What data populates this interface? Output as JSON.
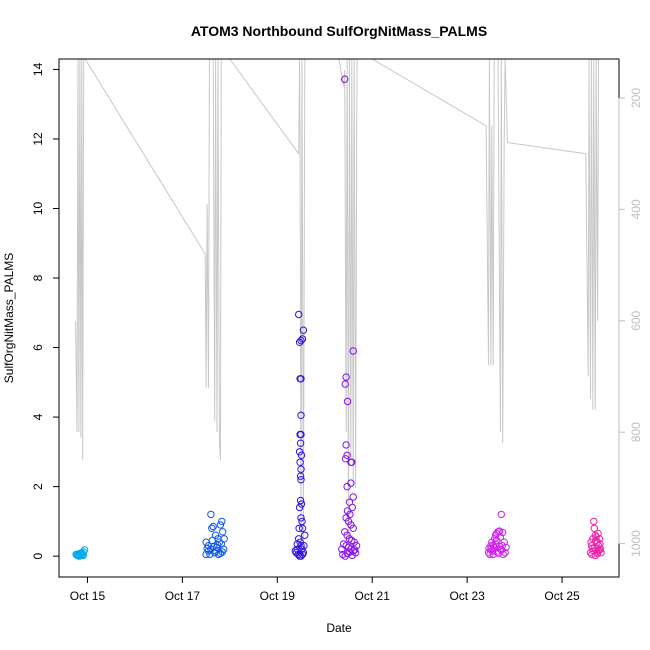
{
  "chart_data": {
    "type": "scatter",
    "title": "ATOM3 Northbound SulfOrgNitMass_PALMS",
    "xlabel": "Date",
    "ylabel": "SulfOrgNitMass_PALMS",
    "x_ticks": [
      "Oct 15",
      "Oct 17",
      "Oct 19",
      "Oct 21",
      "Oct 23",
      "Oct 25"
    ],
    "x_range_days": [
      14.4,
      26.2
    ],
    "y_ticks": [
      0,
      2,
      4,
      6,
      8,
      10,
      12,
      14
    ],
    "ylim": [
      -0.6,
      14.3
    ],
    "right_axis": {
      "ticks": [
        200,
        400,
        600,
        800,
        1000
      ],
      "range": [
        1060,
        130
      ],
      "color": "#bfbfbf"
    },
    "grid": false,
    "series": [
      {
        "color": "#00aaee",
        "points": [
          [
            14.78,
            0.03
          ],
          [
            14.8,
            0.06
          ],
          [
            14.82,
            0.02
          ],
          [
            14.84,
            0.08
          ],
          [
            14.86,
            0.05
          ],
          [
            14.88,
            0.1
          ],
          [
            14.9,
            0.04
          ],
          [
            14.92,
            0.12
          ],
          [
            14.8,
            0.01
          ],
          [
            14.86,
            0.03
          ],
          [
            14.94,
            0.18
          ],
          [
            14.76,
            0.05
          ],
          [
            14.83,
            0.0
          ],
          [
            14.88,
            0.07
          ],
          [
            14.91,
            0.02
          ]
        ]
      },
      {
        "color": "#1155ee",
        "points": [
          [
            17.5,
            0.05
          ],
          [
            17.55,
            0.15
          ],
          [
            17.6,
            1.2
          ],
          [
            17.62,
            0.8
          ],
          [
            17.65,
            0.85
          ],
          [
            17.7,
            0.6
          ],
          [
            17.75,
            0.5
          ],
          [
            17.8,
            0.9
          ],
          [
            17.83,
            1.0
          ],
          [
            17.85,
            0.7
          ],
          [
            17.55,
            0.3
          ],
          [
            17.6,
            0.2
          ],
          [
            17.68,
            0.1
          ],
          [
            17.72,
            0.25
          ],
          [
            17.78,
            0.4
          ],
          [
            17.82,
            0.35
          ],
          [
            17.87,
            0.2
          ],
          [
            17.5,
            0.4
          ],
          [
            17.58,
            0.05
          ],
          [
            17.63,
            0.45
          ],
          [
            17.7,
            0.15
          ],
          [
            17.76,
            0.05
          ],
          [
            17.84,
            0.12
          ],
          [
            17.88,
            0.5
          ],
          [
            17.52,
            0.22
          ],
          [
            17.66,
            0.28
          ],
          [
            17.74,
            0.33
          ],
          [
            17.8,
            0.08
          ]
        ]
      },
      {
        "color": "#3311dd",
        "points": [
          [
            19.45,
            6.95
          ],
          [
            19.47,
            6.15
          ],
          [
            19.5,
            6.2
          ],
          [
            19.53,
            6.25
          ],
          [
            19.55,
            6.5
          ],
          [
            19.48,
            5.1
          ],
          [
            19.5,
            5.1
          ],
          [
            19.5,
            4.05
          ],
          [
            19.48,
            3.5
          ],
          [
            19.5,
            3.5
          ],
          [
            19.49,
            3.25
          ],
          [
            19.47,
            3.0
          ],
          [
            19.51,
            2.9
          ],
          [
            19.48,
            2.7
          ],
          [
            19.5,
            2.5
          ],
          [
            19.49,
            2.3
          ],
          [
            19.5,
            2.2
          ],
          [
            19.49,
            1.6
          ],
          [
            19.51,
            1.5
          ],
          [
            19.47,
            1.4
          ],
          [
            19.5,
            1.1
          ],
          [
            19.52,
            1.0
          ],
          [
            19.46,
            0.8
          ],
          [
            19.53,
            0.8
          ],
          [
            19.45,
            0.5
          ],
          [
            19.48,
            0.4
          ],
          [
            19.5,
            0.3
          ],
          [
            19.52,
            0.2
          ],
          [
            19.55,
            0.1
          ],
          [
            19.42,
            0.2
          ],
          [
            19.4,
            0.1
          ],
          [
            19.44,
            0.05
          ],
          [
            19.47,
            0.0
          ],
          [
            19.5,
            0.0
          ],
          [
            19.53,
            0.05
          ],
          [
            19.56,
            0.3
          ],
          [
            19.58,
            0.6
          ],
          [
            19.42,
            0.35
          ],
          [
            19.38,
            0.15
          ]
        ]
      },
      {
        "color": "#8811ee",
        "points": [
          [
            20.42,
            13.72
          ],
          [
            20.45,
            5.15
          ],
          [
            20.43,
            4.95
          ],
          [
            20.48,
            4.45
          ],
          [
            20.6,
            5.9
          ],
          [
            20.45,
            3.2
          ],
          [
            20.47,
            2.9
          ],
          [
            20.44,
            2.8
          ],
          [
            20.55,
            2.7
          ],
          [
            20.57,
            2.7
          ],
          [
            20.47,
            2.0
          ],
          [
            20.55,
            2.1
          ],
          [
            20.6,
            1.7
          ],
          [
            20.52,
            1.55
          ],
          [
            20.58,
            1.4
          ],
          [
            20.48,
            1.3
          ],
          [
            20.53,
            1.2
          ],
          [
            20.45,
            1.1
          ],
          [
            20.5,
            1.0
          ],
          [
            20.55,
            0.9
          ],
          [
            20.6,
            0.8
          ],
          [
            20.42,
            0.7
          ],
          [
            20.47,
            0.6
          ],
          [
            20.52,
            0.5
          ],
          [
            20.57,
            0.45
          ],
          [
            20.62,
            0.4
          ],
          [
            20.4,
            0.35
          ],
          [
            20.45,
            0.3
          ],
          [
            20.5,
            0.25
          ],
          [
            20.55,
            0.2
          ],
          [
            20.6,
            0.15
          ],
          [
            20.65,
            0.1
          ],
          [
            20.38,
            0.05
          ],
          [
            20.43,
            0.0
          ],
          [
            20.48,
            0.08
          ],
          [
            20.53,
            0.12
          ],
          [
            20.58,
            0.02
          ],
          [
            20.63,
            0.18
          ],
          [
            20.67,
            0.3
          ],
          [
            20.36,
            0.2
          ]
        ]
      },
      {
        "color": "#cc22ee",
        "points": [
          [
            23.45,
            0.1
          ],
          [
            23.5,
            0.2
          ],
          [
            23.52,
            0.4
          ],
          [
            23.55,
            0.3
          ],
          [
            23.58,
            0.5
          ],
          [
            23.6,
            0.6
          ],
          [
            23.62,
            0.65
          ],
          [
            23.65,
            0.7
          ],
          [
            23.68,
            0.72
          ],
          [
            23.7,
            0.55
          ],
          [
            23.72,
            1.2
          ],
          [
            23.75,
            0.68
          ],
          [
            23.48,
            0.05
          ],
          [
            23.53,
            0.15
          ],
          [
            23.57,
            0.25
          ],
          [
            23.6,
            0.35
          ],
          [
            23.63,
            0.12
          ],
          [
            23.66,
            0.08
          ],
          [
            23.7,
            0.2
          ],
          [
            23.74,
            0.3
          ],
          [
            23.78,
            0.4
          ],
          [
            23.8,
            0.1
          ],
          [
            23.5,
            0.3
          ],
          [
            23.55,
            0.05
          ],
          [
            23.62,
            0.45
          ],
          [
            23.68,
            0.28
          ],
          [
            23.72,
            0.18
          ],
          [
            23.76,
            0.05
          ],
          [
            23.46,
            0.22
          ],
          [
            23.82,
            0.25
          ]
        ]
      },
      {
        "color": "#ee22aa",
        "points": [
          [
            25.6,
            0.1
          ],
          [
            25.62,
            0.3
          ],
          [
            25.65,
            0.5
          ],
          [
            25.68,
            0.8
          ],
          [
            25.67,
            1.0
          ],
          [
            25.7,
            0.6
          ],
          [
            25.72,
            0.55
          ],
          [
            25.74,
            0.4
          ],
          [
            25.76,
            0.65
          ],
          [
            25.78,
            0.2
          ],
          [
            25.8,
            0.35
          ],
          [
            25.63,
            0.05
          ],
          [
            25.66,
            0.15
          ],
          [
            25.69,
            0.25
          ],
          [
            25.71,
            0.45
          ],
          [
            25.73,
            0.12
          ],
          [
            25.75,
            0.08
          ],
          [
            25.77,
            0.3
          ],
          [
            25.79,
            0.5
          ],
          [
            25.81,
            0.2
          ],
          [
            25.61,
            0.4
          ],
          [
            25.64,
            0.22
          ],
          [
            25.7,
            0.02
          ],
          [
            25.76,
            0.15
          ],
          [
            25.82,
            0.1
          ]
        ]
      }
    ],
    "altitude_line": {
      "color": "#c8c8c8",
      "points": [
        [
          14.75,
          600
        ],
        [
          14.78,
          800
        ],
        [
          14.8,
          130
        ],
        [
          14.82,
          800
        ],
        [
          14.84,
          130
        ],
        [
          14.86,
          810
        ],
        [
          14.88,
          130
        ],
        [
          14.9,
          850
        ],
        [
          14.92,
          130
        ],
        [
          14.95,
          130
        ],
        [
          17.48,
          480
        ],
        [
          17.5,
          720
        ],
        [
          17.52,
          390
        ],
        [
          17.55,
          720
        ],
        [
          17.57,
          130
        ],
        [
          17.6,
          130
        ],
        [
          17.65,
          130
        ],
        [
          17.68,
          780
        ],
        [
          17.7,
          130
        ],
        [
          17.73,
          800
        ],
        [
          17.75,
          130
        ],
        [
          17.78,
          820
        ],
        [
          17.8,
          850
        ],
        [
          17.82,
          130
        ],
        [
          17.85,
          130
        ],
        [
          18.0,
          130
        ],
        [
          19.45,
          300
        ],
        [
          19.47,
          130
        ],
        [
          19.48,
          300
        ],
        [
          19.5,
          1000
        ],
        [
          19.52,
          130
        ],
        [
          19.55,
          1000
        ],
        [
          19.58,
          130
        ],
        [
          19.62,
          130
        ],
        [
          20.3,
          130
        ],
        [
          20.4,
          180
        ],
        [
          20.42,
          150
        ],
        [
          20.45,
          800
        ],
        [
          20.47,
          130
        ],
        [
          20.5,
          1000
        ],
        [
          20.52,
          130
        ],
        [
          20.55,
          850
        ],
        [
          20.57,
          130
        ],
        [
          20.6,
          900
        ],
        [
          20.62,
          130
        ],
        [
          20.65,
          900
        ],
        [
          20.68,
          130
        ],
        [
          21.0,
          130
        ],
        [
          23.4,
          250
        ],
        [
          23.45,
          680
        ],
        [
          23.47,
          130
        ],
        [
          23.5,
          680
        ],
        [
          23.52,
          250
        ],
        [
          23.55,
          680
        ],
        [
          23.57,
          130
        ],
        [
          23.6,
          130
        ],
        [
          23.65,
          130
        ],
        [
          23.7,
          800
        ],
        [
          23.72,
          130
        ],
        [
          23.75,
          820
        ],
        [
          23.78,
          280
        ],
        [
          23.8,
          130
        ],
        [
          23.85,
          280
        ],
        [
          25.5,
          300
        ],
        [
          25.55,
          700
        ],
        [
          25.57,
          130
        ],
        [
          25.6,
          740
        ],
        [
          25.62,
          130
        ],
        [
          25.65,
          760
        ],
        [
          25.67,
          130
        ],
        [
          25.7,
          760
        ],
        [
          25.72,
          130
        ],
        [
          25.75,
          600
        ],
        [
          25.77,
          130
        ],
        [
          25.8,
          130
        ]
      ]
    }
  }
}
